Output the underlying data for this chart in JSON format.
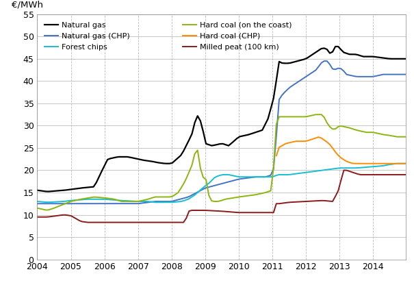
{
  "ylabel": "€/MWh",
  "ylim": [
    0,
    55
  ],
  "yticks": [
    0,
    5,
    10,
    15,
    20,
    25,
    30,
    35,
    40,
    45,
    50,
    55
  ],
  "xlim_start": 2004.0,
  "xlim_end": 2014.97,
  "xtick_labels": [
    "2004",
    "2005",
    "2006",
    "2007",
    "2008",
    "2009",
    "2010",
    "2011",
    "2012",
    "2013",
    "2014"
  ],
  "series": {
    "Natural gas": {
      "color": "#000000",
      "linewidth": 1.6
    },
    "Natural gas (CHP)": {
      "color": "#4472C4",
      "linewidth": 1.4
    },
    "Forest chips": {
      "color": "#17BECF",
      "linewidth": 1.4
    },
    "Hard coal (on the coast)": {
      "color": "#8DB510",
      "linewidth": 1.4
    },
    "Hard coal (CHP)": {
      "color": "#FF8C00",
      "linewidth": 1.4
    },
    "Milled peat (100 km)": {
      "color": "#8B1A1A",
      "linewidth": 1.4
    }
  }
}
